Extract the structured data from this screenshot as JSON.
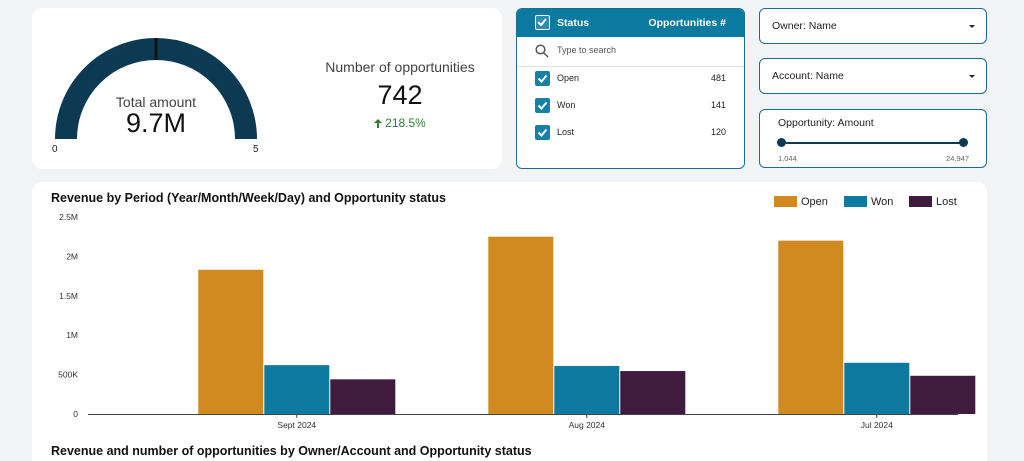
{
  "colors": {
    "accent": "#1b6f8c",
    "gauge": "#0b3a52",
    "open": "#d08a20",
    "won": "#0f7aa0",
    "lost": "#3e1b3f",
    "positive": "#2e7d32"
  },
  "kpi": {
    "gauge": {
      "title": "Total amount",
      "value": "9.7M",
      "min_label": "0",
      "max_label": "5",
      "fill_fraction": 1.0,
      "target_fraction": 0.5
    },
    "opportunities": {
      "title": "Number of opportunities",
      "value": "742",
      "change": "218.5%",
      "change_icon": "arrow-up-icon"
    }
  },
  "status_filter": {
    "header_label": "Status",
    "header_count_label": "Opportunities #",
    "search_placeholder": "Type to search",
    "items": [
      {
        "label": "Open",
        "count": "481",
        "checked": true
      },
      {
        "label": "Won",
        "count": "141",
        "checked": true
      },
      {
        "label": "Lost",
        "count": "120",
        "checked": true
      }
    ]
  },
  "filters": {
    "owner": {
      "label": "Owner: Name"
    },
    "account": {
      "label": "Account: Name"
    },
    "amount": {
      "title": "Opportunity: Amount",
      "min": "1,044",
      "max": "24,947"
    }
  },
  "chart_data": {
    "type": "bar",
    "title": "Revenue by Period (Year/Month/Week/Day) and Opportunity status",
    "categories": [
      "Sept 2024",
      "Aug 2024",
      "Jul 2024"
    ],
    "series": [
      {
        "name": "Open",
        "values": [
          1830000,
          2250000,
          2200000
        ]
      },
      {
        "name": "Won",
        "values": [
          620000,
          610000,
          650000
        ]
      },
      {
        "name": "Lost",
        "values": [
          440000,
          545000,
          485000
        ]
      }
    ],
    "ylim": [
      0,
      2500000
    ],
    "yticks": [
      0,
      500000,
      1000000,
      1500000,
      2000000,
      2500000
    ],
    "ytick_labels": [
      "0",
      "500K",
      "1M",
      "1.5M",
      "2M",
      "2.5M"
    ],
    "legend_position": "top-right",
    "xlabel": "",
    "ylabel": ""
  },
  "section2": {
    "title": "Revenue and number of opportunities by Owner/Account and Opportunity status"
  }
}
